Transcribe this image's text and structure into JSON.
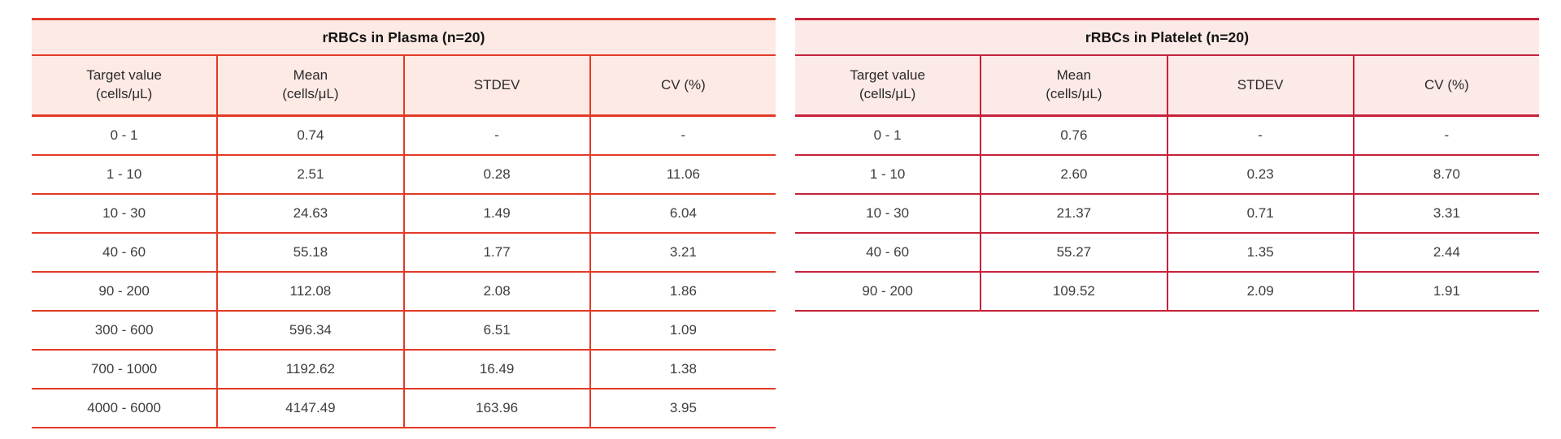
{
  "page": {
    "background_color": "#ffffff",
    "text_color": "#3d3d3d"
  },
  "tables": [
    {
      "title": "rRBCs in Plasma (n=20)",
      "sample_size": 20,
      "accent_color": "#e23a28",
      "header_bg_color": "#fdeae5",
      "columns": [
        "Target value\n(cells/μL)",
        "Mean\n(cells/μL)",
        "STDEV",
        "CV (%)"
      ],
      "rows": [
        [
          "0 - 1",
          "0.74",
          "-",
          "-"
        ],
        [
          "1 - 10",
          "2.51",
          "0.28",
          "11.06"
        ],
        [
          "10 - 30",
          "24.63",
          "1.49",
          "6.04"
        ],
        [
          "40 - 60",
          "55.18",
          "1.77",
          "3.21"
        ],
        [
          "90 - 200",
          "112.08",
          "2.08",
          "1.86"
        ],
        [
          "300 - 600",
          "596.34",
          "6.51",
          "1.09"
        ],
        [
          "700 - 1000",
          "1192.62",
          "16.49",
          "1.38"
        ],
        [
          "4000 - 6000",
          "4147.49",
          "163.96",
          "3.95"
        ]
      ]
    },
    {
      "title": "rRBCs in Platelet (n=20)",
      "sample_size": 20,
      "accent_color": "#c6223a",
      "header_bg_color": "#fceae8",
      "columns": [
        "Target value\n(cells/μL)",
        "Mean\n(cells/μL)",
        "STDEV",
        "CV (%)"
      ],
      "rows": [
        [
          "0 - 1",
          "0.76",
          "-",
          "-"
        ],
        [
          "1 - 10",
          "2.60",
          "0.23",
          "8.70"
        ],
        [
          "10 - 30",
          "21.37",
          "0.71",
          "3.31"
        ],
        [
          "40 - 60",
          "55.27",
          "1.35",
          "2.44"
        ],
        [
          "90 - 200",
          "109.52",
          "2.09",
          "1.91"
        ]
      ]
    }
  ]
}
